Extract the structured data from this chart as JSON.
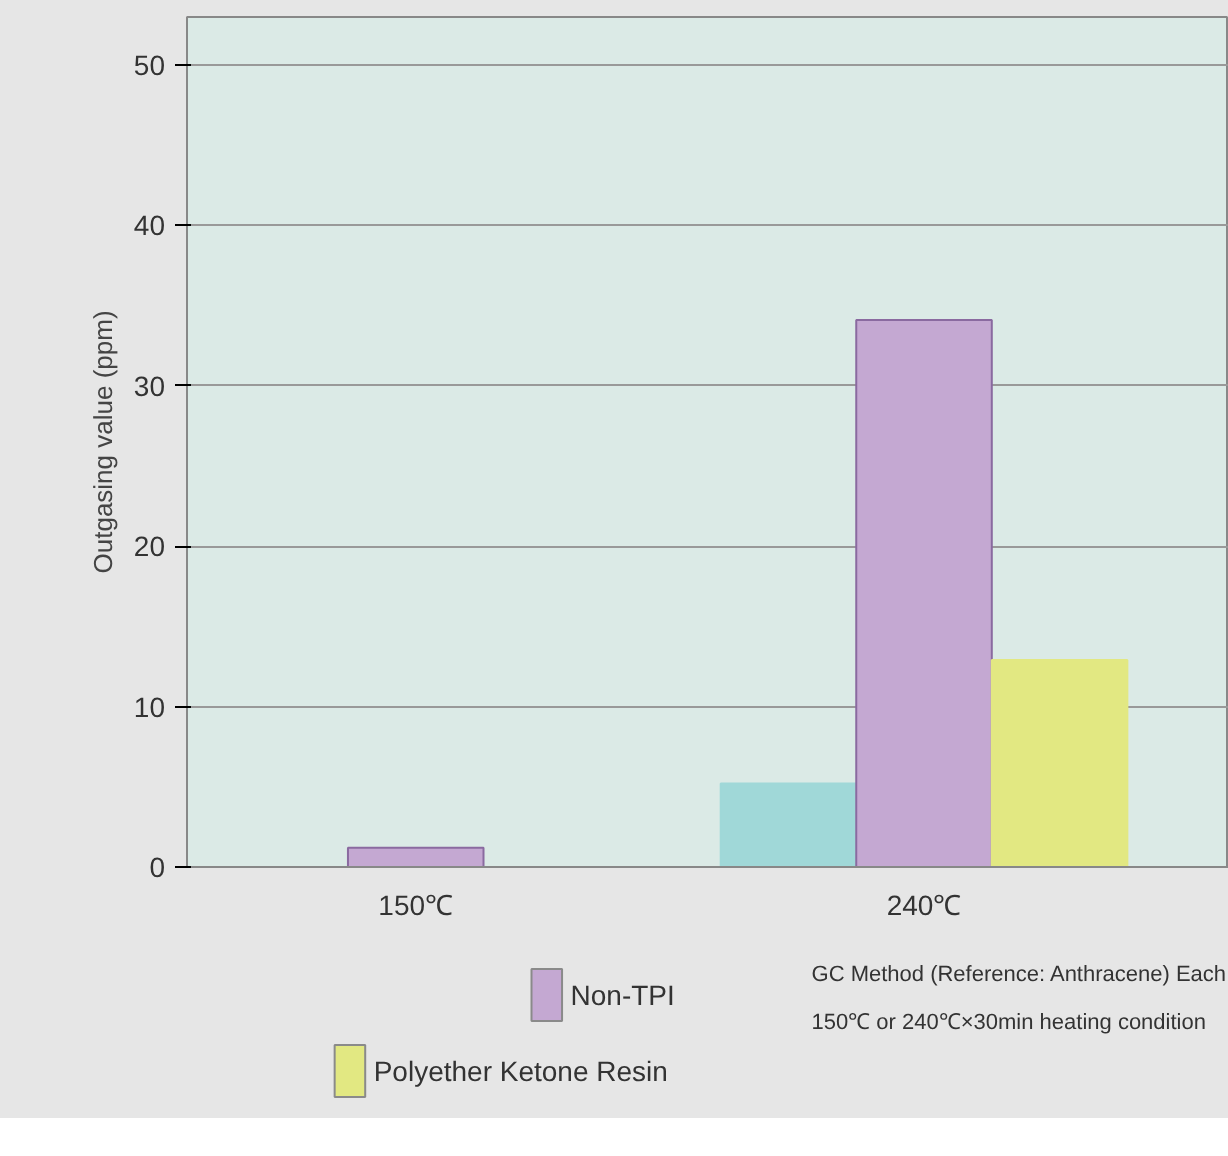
{
  "chart_data": {
    "type": "bar",
    "ylabel": "Outgasing value (ppm)",
    "categories": [
      "150℃",
      "240℃"
    ],
    "series": [
      {
        "color": "#a0d8d8",
        "values": [
          null,
          5.2
        ]
      },
      {
        "name": "Non-TPI",
        "color": "#c4a8d2",
        "values": [
          1.2,
          34.1
        ]
      },
      {
        "name": "Polyether Ketone Resin",
        "color": "#e2e882",
        "values": [
          null,
          12.9
        ]
      }
    ],
    "ylim": [
      0,
      53
    ],
    "yticks": [
      0,
      10,
      20,
      30,
      40,
      50
    ],
    "grid": "y",
    "legend": "bottom left",
    "annotations": [
      "GC Method (Reference: Anthracene) Each",
      "150℃ or 240℃×30min heating condition"
    ]
  }
}
